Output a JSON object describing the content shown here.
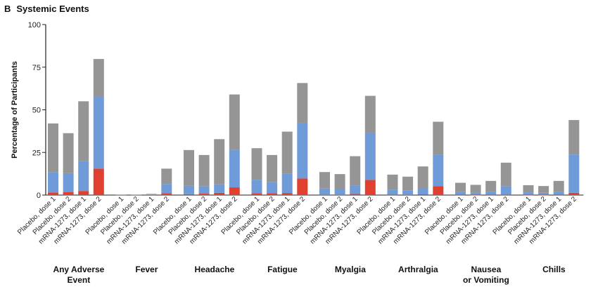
{
  "panel": {
    "letter": "B",
    "title": "Systemic Events"
  },
  "colors": {
    "grade1": "#959595",
    "grade2": "#6f9bd8",
    "grade3": "#e0402f"
  },
  "chart_data": {
    "type": "bar",
    "stacked": true,
    "title": "Systemic Events",
    "ylabel": "Percentage of Participants",
    "xlabel": "",
    "ylim": [
      0,
      100
    ],
    "yticks": [
      0,
      25,
      50,
      75,
      100
    ],
    "bar_labels": [
      "Placebo, dose 1",
      "Placebo, dose 2",
      "mRNA-1273, dose 1",
      "mRNA-1273, dose 2"
    ],
    "categories": [
      {
        "name": "Any Adverse Event",
        "lines": [
          "Any Adverse",
          "Event"
        ]
      },
      {
        "name": "Fever",
        "lines": [
          "Fever"
        ]
      },
      {
        "name": "Headache",
        "lines": [
          "Headache"
        ]
      },
      {
        "name": "Fatigue",
        "lines": [
          "Fatigue"
        ]
      },
      {
        "name": "Myalgia",
        "lines": [
          "Myalgia"
        ]
      },
      {
        "name": "Arthralgia",
        "lines": [
          "Arthralgia"
        ]
      },
      {
        "name": "Nausea or Vomiting",
        "lines": [
          "Nausea",
          "or Vomiting"
        ]
      },
      {
        "name": "Chills",
        "lines": [
          "Chills"
        ]
      }
    ],
    "series": [
      {
        "key": "grade3",
        "values": [
          [
            1.5,
            1.8,
            2.4,
            15.5
          ],
          [
            0,
            0,
            0,
            1.0
          ],
          [
            0.5,
            0.8,
            1.3,
            4.5
          ],
          [
            1.0,
            1.0,
            1.2,
            9.7
          ],
          [
            0.3,
            0.3,
            0.6,
            8.9
          ],
          [
            0.2,
            0.3,
            0.4,
            5.2
          ],
          [
            0.2,
            0.1,
            0.2,
            0.2
          ],
          [
            0.1,
            0.1,
            0.2,
            1.3
          ]
        ]
      },
      {
        "key": "grade2",
        "values": [
          [
            12.0,
            11.0,
            17.5,
            42.5
          ],
          [
            0.2,
            0.2,
            0.4,
            5.5
          ],
          [
            5.0,
            4.2,
            5.0,
            22.0
          ],
          [
            8.0,
            6.5,
            11.5,
            32.5
          ],
          [
            3.5,
            3.0,
            5.0,
            27.5
          ],
          [
            3.0,
            2.5,
            3.5,
            18.5
          ],
          [
            1.5,
            1.3,
            1.8,
            5.0
          ],
          [
            1.5,
            1.2,
            1.8,
            22.5
          ]
        ]
      },
      {
        "key": "grade1",
        "values": [
          [
            28.5,
            23.5,
            35.1,
            21.8
          ],
          [
            0.1,
            0.1,
            0.3,
            9.0
          ],
          [
            20.9,
            18.5,
            26.5,
            32.5
          ],
          [
            18.5,
            16.0,
            24.5,
            23.5
          ],
          [
            9.7,
            9.0,
            17.2,
            21.8
          ],
          [
            8.8,
            8.0,
            12.9,
            19.3
          ],
          [
            5.5,
            4.6,
            6.3,
            13.8
          ],
          [
            4.2,
            4.0,
            6.3,
            20.2
          ]
        ]
      }
    ],
    "grid": false,
    "legend": "none"
  }
}
